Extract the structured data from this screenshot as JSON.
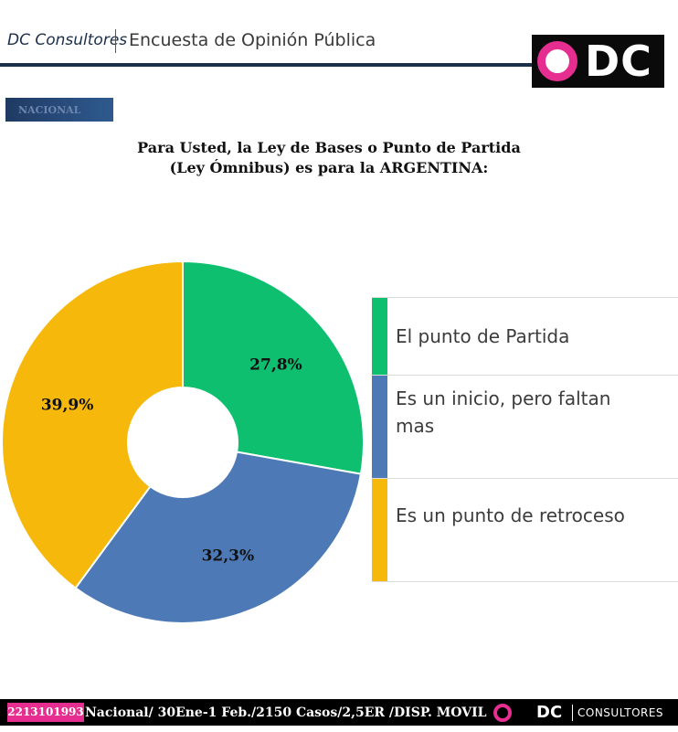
{
  "header": {
    "brand": "DC Consultores",
    "title": "Encuesta de Opinión Pública",
    "logo_text": "DC"
  },
  "tag": "NACIONAL",
  "question": {
    "line1": "Para Usted, la Ley de Bases o Punto de Partida",
    "line2": "(Ley Ómnibus) es para la ARGENTINA:"
  },
  "colors": {
    "green": "#0dbf6e",
    "blue": "#4d7ab7",
    "yellow": "#f6b80b",
    "brand_pink": "#e52e8f",
    "navy": "#1b2e4a"
  },
  "chart_data": {
    "type": "pie",
    "style": "donut",
    "title": "Para Usted, la Ley de Bases o Punto de Partida (Ley Ómnibus) es para la ARGENTINA:",
    "categories": [
      "El punto de Partida",
      "Es un inicio, pero faltan mas",
      "Es un punto de retroceso"
    ],
    "values": [
      27.8,
      32.3,
      39.9
    ],
    "data_labels": [
      "27,8%",
      "32,3%",
      "39,9%"
    ],
    "colors": [
      "#0dbf6e",
      "#4d7ab7",
      "#f6b80b"
    ],
    "legend_position": "right"
  },
  "legend": [
    {
      "label": "El punto de Partida",
      "color": "#0dbf6e"
    },
    {
      "label": "Es un inicio, pero faltan mas",
      "color": "#4d7ab7"
    },
    {
      "label": "Es un punto de retroceso",
      "color": "#f6b80b"
    }
  ],
  "footer": {
    "phone": "2213101993",
    "info": "Nacional/ 30Ene-1 Feb./2150 Casos/2,5ER /DISP. MOVIL",
    "logo_dc": "DC",
    "logo_text": "CONSULTORES"
  }
}
